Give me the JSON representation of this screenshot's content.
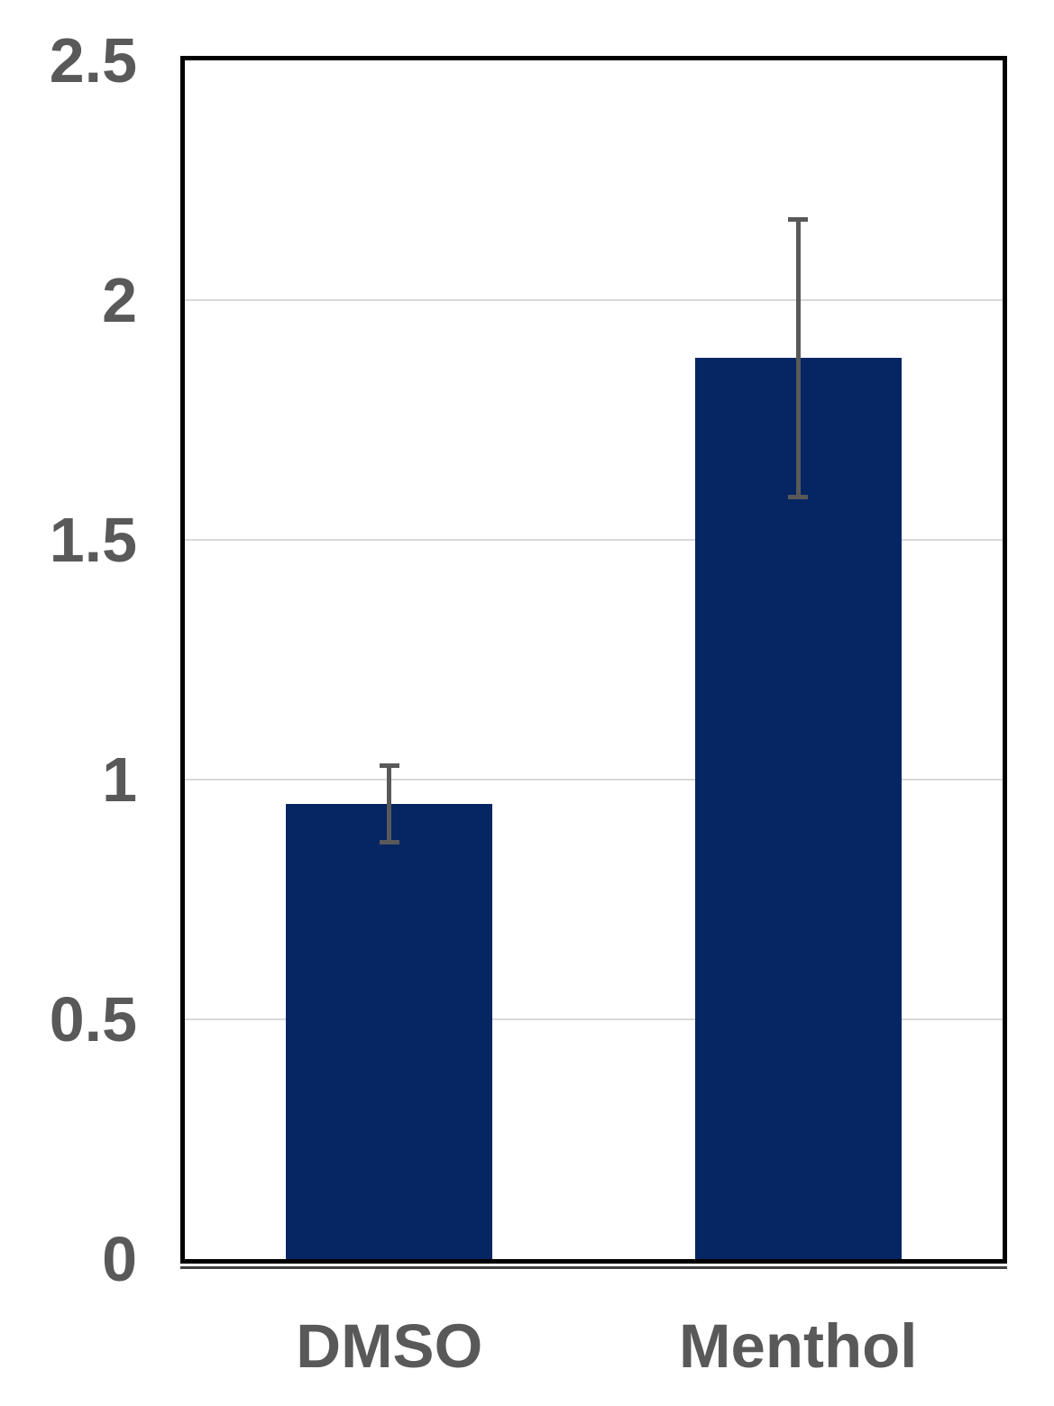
{
  "chart_data": {
    "type": "bar",
    "title": "",
    "xlabel": "",
    "ylabel": "",
    "categories": [
      "DMSO",
      "Menthol"
    ],
    "values": [
      0.95,
      1.88
    ],
    "error_bars": {
      "upper": [
        1.03,
        2.17
      ],
      "lower": [
        0.87,
        1.59
      ]
    },
    "ylim": [
      0,
      2.5
    ],
    "yticks": [
      {
        "value": 0,
        "label": "0"
      },
      {
        "value": 0.5,
        "label": "0.5"
      },
      {
        "value": 1,
        "label": "1"
      },
      {
        "value": 1.5,
        "label": "1.5"
      },
      {
        "value": 2,
        "label": "2"
      },
      {
        "value": 2.5,
        "label": "2.5"
      }
    ],
    "grid": true,
    "legend": "none",
    "colors": {
      "bar_fill": "#052663",
      "error_bar": "#595959",
      "tick_label": "#595959",
      "gridline": "#d9d9d9",
      "plot_border": "#000000",
      "background": "#ffffff"
    }
  }
}
